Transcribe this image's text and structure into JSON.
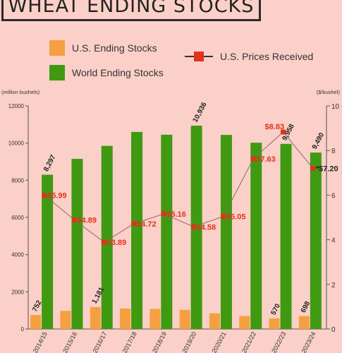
{
  "title": "WHEAT ENDING STOCKS",
  "legend": {
    "us_stocks": "U.S. Ending Stocks",
    "world_stocks": "World Ending Stocks",
    "us_prices": "U.S. Prices Received"
  },
  "colors": {
    "background": "#fbd0c8",
    "us_bar": "#f5a040",
    "world_bar": "#3f9a12",
    "price": "#e0321c",
    "text": "#333333"
  },
  "chart_data": {
    "type": "bar",
    "categories": [
      "2014/15",
      "2015/16",
      "2016/17",
      "2017/18",
      "2018/19",
      "2019/20",
      "2020/21",
      "2021/22",
      "2022/23",
      "2023/24"
    ],
    "series": [
      {
        "name": "U.S. Ending Stocks",
        "axis": "left",
        "type": "bar",
        "values": [
          752,
          976,
          1181,
          1100,
          1080,
          1028,
          845,
          698,
          570,
          698
        ]
      },
      {
        "name": "World Ending Stocks",
        "axis": "left",
        "type": "bar",
        "values": [
          8297,
          9150,
          9850,
          10600,
          10450,
          10936,
          10440,
          10020,
          9958,
          9490
        ]
      },
      {
        "name": "U.S. Prices Received",
        "axis": "right",
        "type": "line",
        "values": [
          5.99,
          4.89,
          3.89,
          4.72,
          5.16,
          4.58,
          5.05,
          7.63,
          8.83,
          7.2
        ]
      }
    ],
    "bar_labels": [
      {
        "series": "U.S. Ending Stocks",
        "index": 0,
        "text": "752"
      },
      {
        "series": "U.S. Ending Stocks",
        "index": 2,
        "text": "1,181"
      },
      {
        "series": "U.S. Ending Stocks",
        "index": 8,
        "text": "570"
      },
      {
        "series": "U.S. Ending Stocks",
        "index": 9,
        "text": "698"
      },
      {
        "series": "World Ending Stocks",
        "index": 0,
        "text": "8,297"
      },
      {
        "series": "World Ending Stocks",
        "index": 5,
        "text": "10,936"
      },
      {
        "series": "World Ending Stocks",
        "index": 8,
        "text": "9,958"
      },
      {
        "series": "World Ending Stocks",
        "index": 9,
        "text": "9,490"
      }
    ],
    "price_labels": [
      "$5.99",
      "$4.89",
      "$3.89",
      "$4.72",
      "$5.16",
      "$4.58",
      "$5.05",
      "$7.63",
      "$8.83",
      "*$7.20"
    ],
    "left_axis": {
      "unit": "(million bushels)",
      "range": [
        0,
        12000
      ],
      "ticks": [
        0,
        2000,
        4000,
        6000,
        8000,
        10000,
        12000
      ]
    },
    "right_axis": {
      "unit": "($/bushel)",
      "range": [
        0,
        10
      ],
      "ticks": [
        0,
        2,
        4,
        6,
        8,
        10
      ]
    },
    "grid": false,
    "legend_position": "top"
  }
}
